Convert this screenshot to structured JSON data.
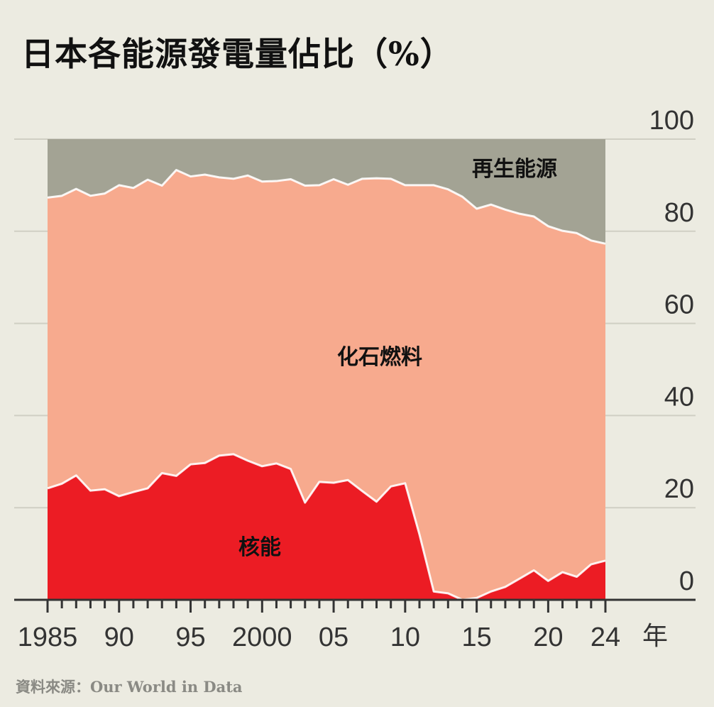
{
  "title": "日本各能源發電量佔比（%）",
  "source": "資料來源：Our World in Data",
  "colors": {
    "background": "#ecebe1",
    "nuclear": "#ec1c24",
    "fossil": "#f7aa8e",
    "renewable": "#a3a394",
    "outline": "#ffffff"
  },
  "chart_data": {
    "type": "area",
    "stacked": true,
    "title": "日本各能源發電量佔比（%）",
    "xlabel": "年",
    "ylabel": "",
    "xlim": [
      1985,
      2024
    ],
    "ylim": [
      0,
      100
    ],
    "y_axis_side": "right",
    "grid": true,
    "x_ticks": [
      1985,
      1990,
      1995,
      2000,
      2005,
      2010,
      2015,
      2020,
      2024
    ],
    "x_tick_labels": [
      "1985",
      "90",
      "95",
      "2000",
      "05",
      "10",
      "15",
      "20",
      "24"
    ],
    "y_ticks": [
      0,
      20,
      40,
      60,
      80,
      100
    ],
    "y_tick_labels": [
      "0",
      "20",
      "40",
      "60",
      "80",
      "100"
    ],
    "x": [
      1985,
      1986,
      1987,
      1988,
      1989,
      1990,
      1991,
      1992,
      1993,
      1994,
      1995,
      1996,
      1997,
      1998,
      1999,
      2000,
      2001,
      2002,
      2003,
      2004,
      2005,
      2006,
      2007,
      2008,
      2009,
      2010,
      2011,
      2012,
      2013,
      2014,
      2015,
      2016,
      2017,
      2018,
      2019,
      2020,
      2021,
      2022,
      2023,
      2024
    ],
    "series": [
      {
        "name": "核能",
        "color": "#ec1c24",
        "values": [
          24.2,
          25.2,
          27.0,
          23.7,
          24.0,
          22.5,
          23.4,
          24.2,
          27.5,
          26.9,
          29.4,
          29.7,
          31.3,
          31.6,
          30.2,
          29.0,
          29.6,
          28.4,
          21.1,
          25.6,
          25.4,
          26.0,
          23.6,
          21.3,
          24.6,
          25.3,
          14.2,
          1.8,
          1.4,
          0.0,
          0.4,
          1.8,
          2.8,
          4.6,
          6.4,
          4.1,
          6.0,
          5.0,
          7.7,
          8.5
        ]
      },
      {
        "name": "化石燃料",
        "color": "#f7aa8e",
        "values": [
          63.1,
          62.5,
          62.2,
          64.0,
          64.2,
          67.5,
          66.0,
          67.0,
          62.4,
          66.4,
          62.5,
          62.6,
          60.4,
          59.8,
          61.9,
          61.8,
          61.3,
          62.9,
          68.8,
          64.4,
          65.9,
          64.1,
          67.8,
          70.2,
          66.8,
          64.7,
          75.8,
          88.2,
          87.7,
          87.5,
          84.5,
          84.0,
          81.9,
          79.2,
          76.8,
          77.0,
          74.1,
          74.6,
          70.3,
          68.8
        ]
      },
      {
        "name": "再生能源",
        "color": "#a3a394",
        "values": [
          12.7,
          12.3,
          10.8,
          12.3,
          11.8,
          10.0,
          10.6,
          8.8,
          10.1,
          6.7,
          8.1,
          7.7,
          8.3,
          8.6,
          7.9,
          9.2,
          9.1,
          8.7,
          10.1,
          10.0,
          8.7,
          9.9,
          8.6,
          8.5,
          8.6,
          10.0,
          10.0,
          10.0,
          10.9,
          12.5,
          15.1,
          14.2,
          15.3,
          16.2,
          16.8,
          18.9,
          19.9,
          20.4,
          22.0,
          22.7
        ]
      }
    ]
  }
}
